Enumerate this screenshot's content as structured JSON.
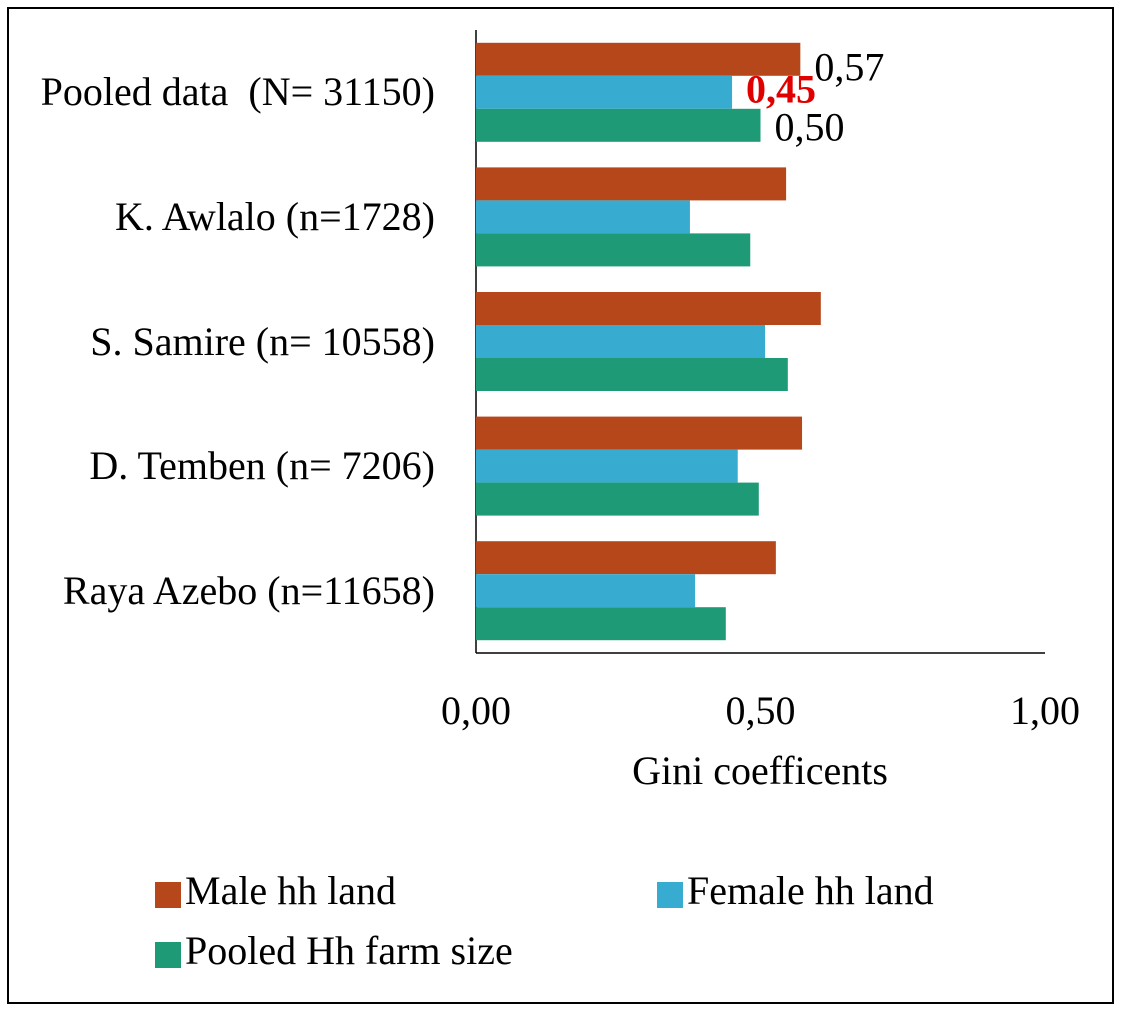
{
  "chart_data": {
    "type": "barh",
    "categories": [
      "Pooled data  (N= 31150)",
      "K. Awlalo (n=1728)",
      "S. Samire (n= 10558)",
      "D. Temben (n= 7206)",
      "Raya Azebo (n=11658)"
    ],
    "series": [
      {
        "name": "Male hh land",
        "color": "#b5471b",
        "values": [
          0.57,
          0.545,
          0.606,
          0.573,
          0.527
        ],
        "value_labels": [
          "0,57",
          null,
          null,
          null,
          null
        ]
      },
      {
        "name": "Female hh land",
        "color": "#37acd0",
        "values": [
          0.45,
          0.376,
          0.508,
          0.46,
          0.385
        ],
        "value_labels": [
          "0,45",
          null,
          null,
          null,
          null
        ]
      },
      {
        "name": "Pooled Hh farm size",
        "color": "#1e9a77",
        "values": [
          0.5,
          0.482,
          0.548,
          0.497,
          0.439
        ],
        "value_labels": [
          "0,50",
          null,
          null,
          null,
          null
        ]
      }
    ],
    "xlim": [
      0,
      1
    ],
    "xticks": [
      {
        "value": 0,
        "label": "0,00"
      },
      {
        "value": 0.5,
        "label": "0,50"
      },
      {
        "value": 1,
        "label": "1,00"
      }
    ],
    "x_label": "Gini coefficents",
    "grid": false,
    "legend": "bottom"
  }
}
